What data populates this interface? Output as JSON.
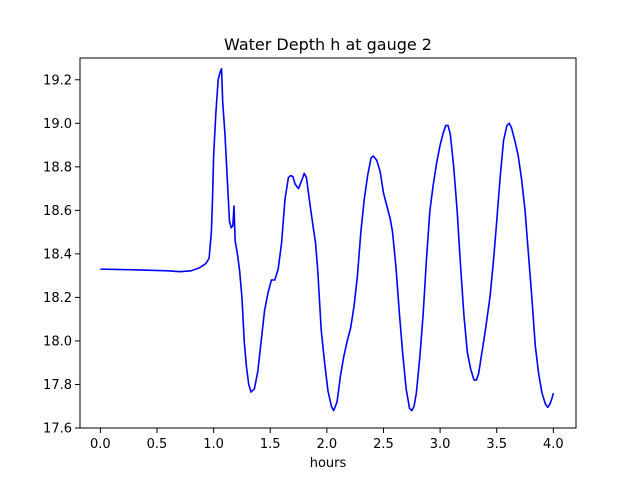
{
  "chart_data": {
    "type": "line",
    "title": "Water Depth h at gauge 2",
    "xlabel": "hours",
    "ylabel": "",
    "xlim": [
      -0.18,
      4.2
    ],
    "ylim": [
      17.6,
      19.3
    ],
    "grid": false,
    "legend": "none",
    "x_ticks": [
      0.0,
      0.5,
      1.0,
      1.5,
      2.0,
      2.5,
      3.0,
      3.5,
      4.0
    ],
    "x_tick_labels": [
      "0.0",
      "0.5",
      "1.0",
      "1.5",
      "2.0",
      "2.5",
      "3.0",
      "3.5",
      "4.0"
    ],
    "y_ticks": [
      17.6,
      17.8,
      18.0,
      18.2,
      18.4,
      18.6,
      18.8,
      19.0,
      19.2
    ],
    "y_tick_labels": [
      "17.6",
      "17.8",
      "18.0",
      "18.2",
      "18.4",
      "18.6",
      "18.8",
      "19.0",
      "19.2"
    ],
    "series": [
      {
        "color": "#0000ff",
        "points": [
          [
            0.0,
            18.33
          ],
          [
            0.3,
            18.327
          ],
          [
            0.6,
            18.322
          ],
          [
            0.7,
            18.318
          ],
          [
            0.8,
            18.322
          ],
          [
            0.87,
            18.335
          ],
          [
            0.93,
            18.355
          ],
          [
            0.96,
            18.38
          ],
          [
            0.98,
            18.5
          ],
          [
            0.99,
            18.65
          ],
          [
            1.0,
            18.85
          ],
          [
            1.02,
            19.05
          ],
          [
            1.04,
            19.2
          ],
          [
            1.06,
            19.24
          ],
          [
            1.07,
            19.25
          ],
          [
            1.08,
            19.1
          ],
          [
            1.1,
            18.95
          ],
          [
            1.12,
            18.75
          ],
          [
            1.14,
            18.55
          ],
          [
            1.155,
            18.52
          ],
          [
            1.17,
            18.53
          ],
          [
            1.18,
            18.62
          ],
          [
            1.19,
            18.46
          ],
          [
            1.21,
            18.4
          ],
          [
            1.23,
            18.32
          ],
          [
            1.25,
            18.2
          ],
          [
            1.27,
            18.0
          ],
          [
            1.29,
            17.88
          ],
          [
            1.31,
            17.8
          ],
          [
            1.33,
            17.765
          ],
          [
            1.36,
            17.78
          ],
          [
            1.39,
            17.86
          ],
          [
            1.42,
            18.0
          ],
          [
            1.45,
            18.14
          ],
          [
            1.48,
            18.22
          ],
          [
            1.51,
            18.28
          ],
          [
            1.54,
            18.28
          ],
          [
            1.57,
            18.33
          ],
          [
            1.6,
            18.45
          ],
          [
            1.63,
            18.65
          ],
          [
            1.66,
            18.75
          ],
          [
            1.68,
            18.76
          ],
          [
            1.7,
            18.755
          ],
          [
            1.72,
            18.72
          ],
          [
            1.75,
            18.7
          ],
          [
            1.78,
            18.74
          ],
          [
            1.8,
            18.77
          ],
          [
            1.82,
            18.75
          ],
          [
            1.85,
            18.63
          ],
          [
            1.88,
            18.52
          ],
          [
            1.9,
            18.45
          ],
          [
            1.92,
            18.32
          ],
          [
            1.95,
            18.05
          ],
          [
            1.98,
            17.9
          ],
          [
            2.01,
            17.77
          ],
          [
            2.04,
            17.7
          ],
          [
            2.06,
            17.68
          ],
          [
            2.09,
            17.72
          ],
          [
            2.12,
            17.84
          ],
          [
            2.15,
            17.93
          ],
          [
            2.18,
            18.0
          ],
          [
            2.21,
            18.06
          ],
          [
            2.24,
            18.16
          ],
          [
            2.27,
            18.3
          ],
          [
            2.3,
            18.5
          ],
          [
            2.33,
            18.65
          ],
          [
            2.36,
            18.76
          ],
          [
            2.39,
            18.84
          ],
          [
            2.41,
            18.85
          ],
          [
            2.44,
            18.83
          ],
          [
            2.47,
            18.78
          ],
          [
            2.5,
            18.68
          ],
          [
            2.53,
            18.62
          ],
          [
            2.56,
            18.56
          ],
          [
            2.58,
            18.5
          ],
          [
            2.61,
            18.34
          ],
          [
            2.64,
            18.13
          ],
          [
            2.67,
            17.94
          ],
          [
            2.7,
            17.78
          ],
          [
            2.73,
            17.69
          ],
          [
            2.75,
            17.68
          ],
          [
            2.77,
            17.7
          ],
          [
            2.79,
            17.76
          ],
          [
            2.82,
            17.92
          ],
          [
            2.85,
            18.12
          ],
          [
            2.88,
            18.38
          ],
          [
            2.91,
            18.6
          ],
          [
            2.94,
            18.72
          ],
          [
            2.97,
            18.82
          ],
          [
            3.0,
            18.9
          ],
          [
            3.03,
            18.96
          ],
          [
            3.05,
            18.99
          ],
          [
            3.07,
            18.99
          ],
          [
            3.09,
            18.95
          ],
          [
            3.12,
            18.8
          ],
          [
            3.15,
            18.6
          ],
          [
            3.18,
            18.35
          ],
          [
            3.21,
            18.12
          ],
          [
            3.24,
            17.95
          ],
          [
            3.27,
            17.87
          ],
          [
            3.3,
            17.82
          ],
          [
            3.32,
            17.82
          ],
          [
            3.34,
            17.85
          ],
          [
            3.37,
            17.95
          ],
          [
            3.4,
            18.05
          ],
          [
            3.44,
            18.2
          ],
          [
            3.47,
            18.36
          ],
          [
            3.5,
            18.55
          ],
          [
            3.53,
            18.75
          ],
          [
            3.56,
            18.92
          ],
          [
            3.59,
            18.99
          ],
          [
            3.61,
            19.0
          ],
          [
            3.63,
            18.98
          ],
          [
            3.66,
            18.92
          ],
          [
            3.69,
            18.85
          ],
          [
            3.72,
            18.74
          ],
          [
            3.75,
            18.6
          ],
          [
            3.78,
            18.4
          ],
          [
            3.81,
            18.2
          ],
          [
            3.84,
            17.98
          ],
          [
            3.87,
            17.85
          ],
          [
            3.9,
            17.76
          ],
          [
            3.93,
            17.71
          ],
          [
            3.95,
            17.695
          ],
          [
            3.97,
            17.71
          ],
          [
            3.99,
            17.74
          ],
          [
            4.0,
            17.76
          ]
        ]
      }
    ]
  }
}
